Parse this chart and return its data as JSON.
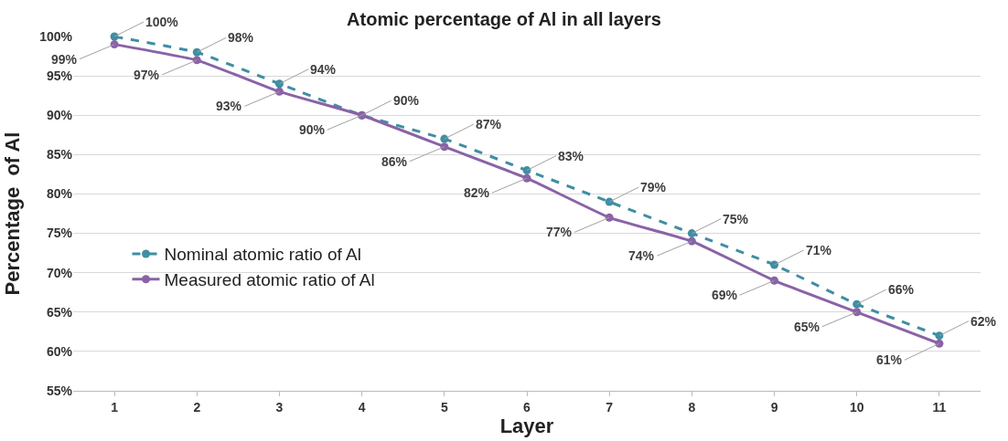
{
  "chart_data": {
    "type": "line",
    "title": "Atomic percentage of Al in all layers",
    "xlabel": "Layer",
    "ylabel": "Percentage  of Al",
    "categories": [
      "1",
      "2",
      "3",
      "4",
      "5",
      "6",
      "7",
      "8",
      "9",
      "10",
      "11"
    ],
    "series": [
      {
        "name": "Nominal atomic ratio of Al",
        "color": "#3f8ea3",
        "line_style": "dashed",
        "values": [
          100,
          98,
          94,
          90,
          87,
          83,
          79,
          75,
          71,
          66,
          62
        ],
        "value_labels": [
          "100%",
          "98%",
          "94%",
          "90%",
          "87%",
          "83%",
          "79%",
          "75%",
          "71%",
          "66%",
          "62%"
        ]
      },
      {
        "name": "Measured atomic ratio of Al",
        "color": "#8a63a6",
        "line_style": "solid",
        "values": [
          99,
          97,
          93,
          90,
          86,
          82,
          77,
          74,
          69,
          65,
          61
        ],
        "value_labels": [
          "99%",
          "97%",
          "93%",
          "90%",
          "86%",
          "82%",
          "77%",
          "74%",
          "69%",
          "65%",
          "61%"
        ]
      }
    ],
    "ylim": [
      55,
      100
    ],
    "yticks": [
      {
        "value": 55,
        "label": "55%"
      },
      {
        "value": 60,
        "label": "60%"
      },
      {
        "value": 65,
        "label": "65%"
      },
      {
        "value": 70,
        "label": "70%"
      },
      {
        "value": 75,
        "label": "75%"
      },
      {
        "value": 80,
        "label": "80%"
      },
      {
        "value": 85,
        "label": "85%"
      },
      {
        "value": 90,
        "label": "90%"
      },
      {
        "value": 95,
        "label": "95%"
      },
      {
        "value": 100,
        "label": "100%"
      }
    ],
    "grid": "y",
    "legend": "left",
    "marker": "circle"
  }
}
